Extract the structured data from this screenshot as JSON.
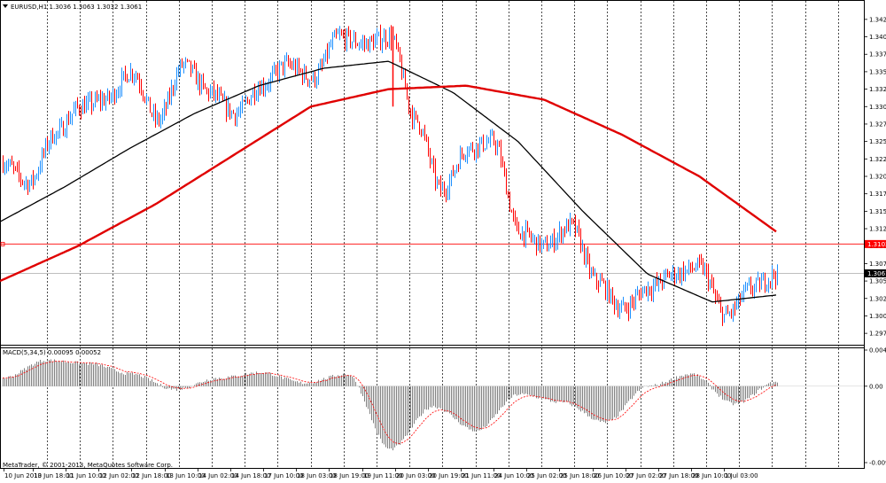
{
  "window": {
    "symbol_header": "EURUSD,H1  1.3036 1.3063 1.3032 1.3061",
    "copyright": "MetaTrader, © 2001-2013, MetaQuotes Software Corp."
  },
  "main_pane": {
    "price_axis_labels": [
      "1.3425",
      "1.3400",
      "1.3375",
      "1.3350",
      "1.3325",
      "1.3300",
      "1.3275",
      "1.3250",
      "1.3225",
      "1.3200",
      "1.3175",
      "1.3150",
      "1.3125",
      "1.3100",
      "1.3075",
      "1.3050",
      "1.3025",
      "1.3000",
      "1.2975"
    ],
    "hline_label": "1.3103",
    "bid_label": "1.3061",
    "colors": {
      "bull": "#1e90ff",
      "bear": "#ff0000",
      "ma_fast": "#000000",
      "ma_slow": "#e00000",
      "hline": "#ff0000",
      "grid": "#000000"
    }
  },
  "macd_pane": {
    "header": "MACD(5,34,5) 0.00095 0.00052",
    "axis_labels": [
      "0.00446",
      "0.00",
      "-0.00943"
    ],
    "colors": {
      "hist": "#808080",
      "signal": "#ff0000"
    }
  },
  "time_axis": {
    "labels": [
      "10 Jun 2013",
      "10 Jun 18:00",
      "11 Jun 10:00",
      "12 Jun 02:00",
      "12 Jun 18:00",
      "13 Jun 10:00",
      "14 Jun 02:00",
      "14 Jun 18:00",
      "17 Jun 10:00",
      "18 Jun 03:00",
      "18 Jun 19:00",
      "19 Jun 11:00",
      "20 Jun 03:00",
      "20 Jun 19:00",
      "21 Jun 11:00",
      "24 Jun 10:00",
      "25 Jun 02:00",
      "25 Jun 18:00",
      "26 Jun 10:00",
      "27 Jun 02:00",
      "27 Jun 18:00",
      "28 Jun 10:00",
      "1 Jul 03:00"
    ]
  },
  "chart_data": {
    "type": "line",
    "title": "EURUSD,H1",
    "price_ylim": [
      1.2965,
      1.3435
    ],
    "macd_ylim": [
      -0.00943,
      0.00446
    ],
    "series": [
      {
        "name": "EURUSD",
        "anchors": [
          1.322,
          1.319,
          1.326,
          1.33,
          1.331,
          1.335,
          1.328,
          1.336,
          1.332,
          1.329,
          1.333,
          1.336,
          1.334,
          1.34,
          1.339,
          1.34,
          1.328,
          1.318,
          1.324,
          1.325,
          1.312,
          1.31,
          1.313,
          1.305,
          1.301,
          1.304,
          1.306,
          1.307,
          1.3,
          1.304,
          1.306
        ]
      },
      {
        "anchors": [
          1.3135,
          1.3185,
          1.324,
          1.329,
          1.333,
          1.3355,
          1.3365,
          1.332,
          1.325,
          1.315,
          1.306,
          1.302,
          1.303
        ]
      },
      {
        "anchors": [
          1.305,
          1.31,
          1.316,
          1.323,
          1.33,
          1.3325,
          1.333,
          1.331,
          1.326,
          1.32,
          1.312
        ]
      },
      {
        "name": "MACD",
        "anchors": [
          0.001,
          0.0032,
          0.0028,
          0.0015,
          -0.0004,
          0.001,
          0.0017,
          0.0004,
          0.0015,
          -0.0078,
          -0.0025,
          -0.0055,
          -0.001,
          -0.002,
          -0.0045,
          0.0,
          0.0015,
          -0.0022,
          0.0006
        ]
      }
    ]
  }
}
